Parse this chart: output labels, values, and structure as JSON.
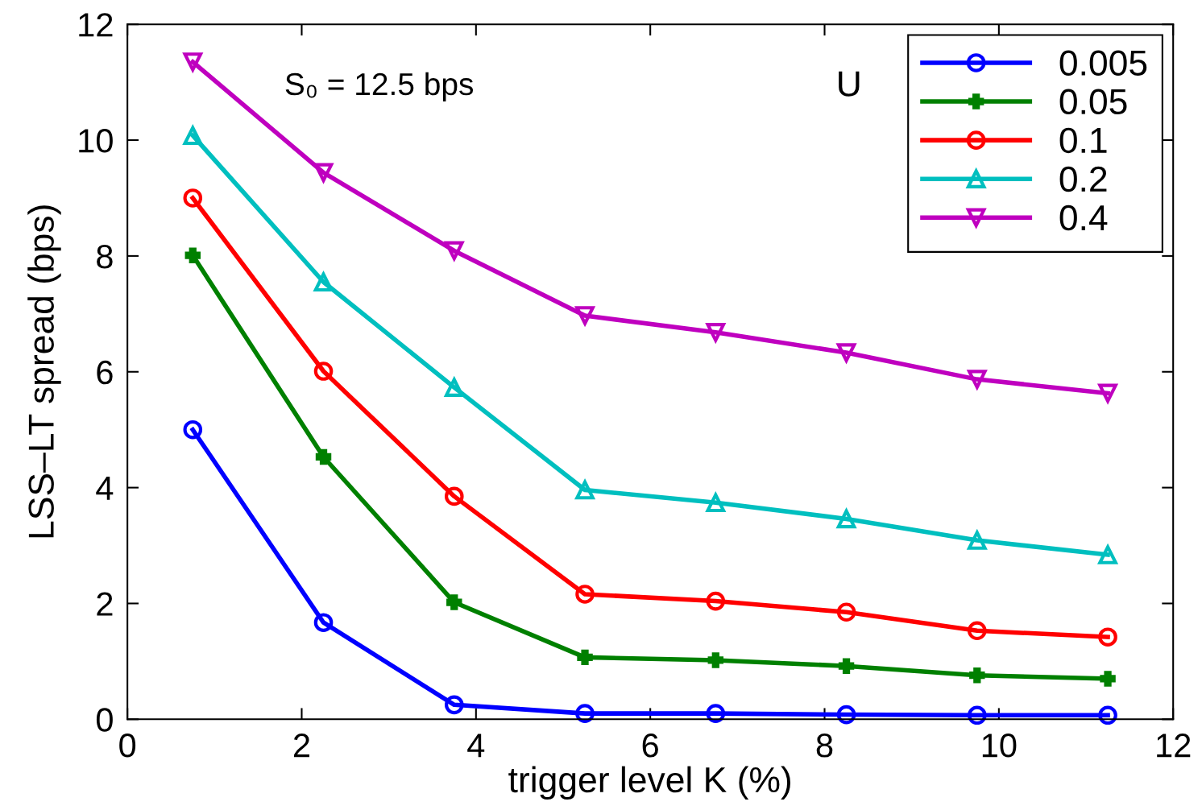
{
  "chart_data": {
    "type": "line",
    "xlabel": "trigger level K (%)",
    "ylabel": "LSS–LT spread (bps)",
    "xlim": [
      0,
      12
    ],
    "ylim": [
      0,
      12
    ],
    "xticks": [
      0,
      2,
      4,
      6,
      8,
      10,
      12
    ],
    "yticks": [
      0,
      2,
      4,
      6,
      8,
      10,
      12
    ],
    "grid": false,
    "legend": "top right",
    "legend_title": "U",
    "line_style": "solid",
    "annotations": [
      "S₀ = 12.5 bps"
    ],
    "x": [
      0.75,
      2.25,
      3.75,
      5.25,
      6.75,
      8.25,
      9.75,
      11.25
    ],
    "series": [
      {
        "name": "0.005",
        "color": "#0000ff",
        "marker": "circle",
        "values": [
          5.0,
          1.67,
          0.25,
          0.1,
          0.1,
          0.08,
          0.07,
          0.07
        ]
      },
      {
        "name": "0.05",
        "color": "#008000",
        "marker": "cross",
        "values": [
          8.01,
          4.53,
          2.02,
          1.07,
          1.02,
          0.92,
          0.76,
          0.7
        ]
      },
      {
        "name": "0.1",
        "color": "#ff0000",
        "marker": "circle",
        "values": [
          9.0,
          6.01,
          3.85,
          2.16,
          2.04,
          1.85,
          1.53,
          1.42
        ]
      },
      {
        "name": "0.2",
        "color": "#00bfbf",
        "marker": "triangle",
        "values": [
          10.08,
          7.55,
          5.73,
          3.96,
          3.74,
          3.46,
          3.09,
          2.84
        ]
      },
      {
        "name": "0.4",
        "color": "#bf00bf",
        "marker": "triangle_down",
        "values": [
          11.35,
          9.44,
          8.09,
          6.97,
          6.68,
          6.33,
          5.87,
          5.63
        ]
      }
    ]
  }
}
